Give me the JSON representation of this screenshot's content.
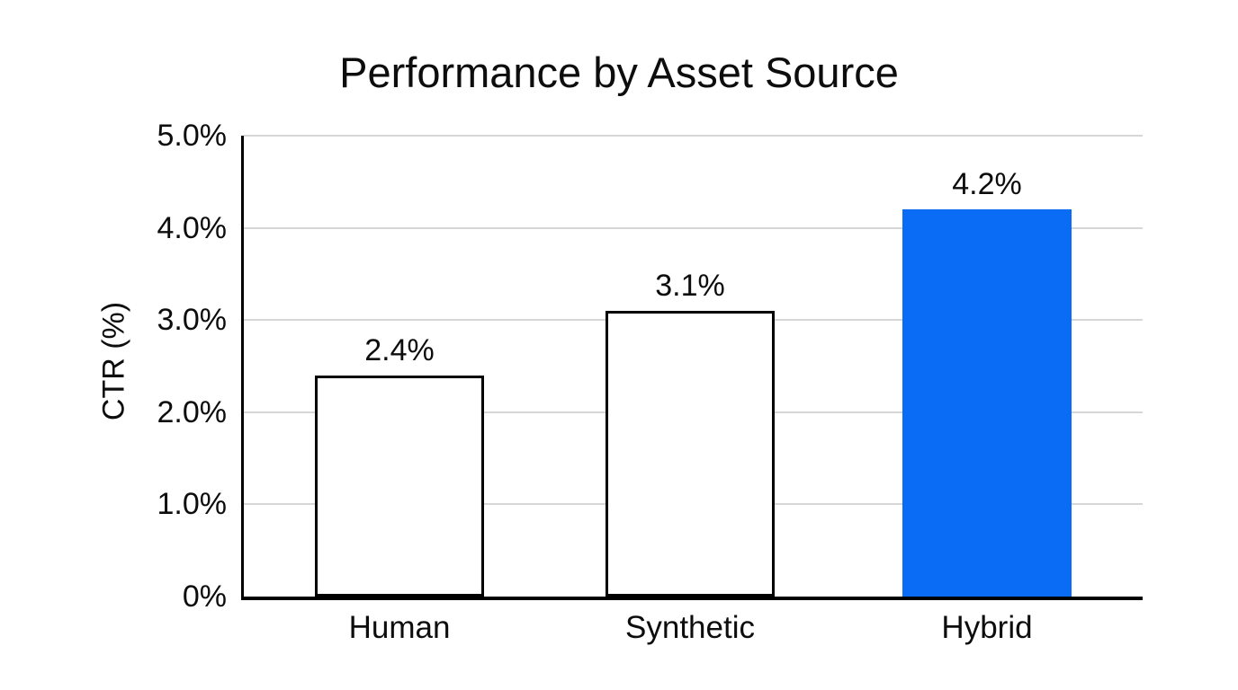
{
  "page": {
    "background": "#ffffff"
  },
  "chart_data": {
    "type": "bar",
    "title": "Performance by Asset Source",
    "categories": [
      "Human",
      "Synthetic",
      "Hybrid"
    ],
    "values": [
      2.4,
      3.1,
      4.2
    ],
    "value_labels": [
      "2.4%",
      "3.1%",
      "4.2%"
    ],
    "xlabel": "",
    "ylabel": "CTR (%)",
    "ylim": [
      0,
      5
    ],
    "yticks": [
      0,
      1,
      2,
      3,
      4,
      5
    ],
    "ytick_labels": [
      "0%",
      "1.0%",
      "2.0%",
      "3.0%",
      "4.0%",
      "5.0%"
    ],
    "grid": true,
    "legend_position": "none",
    "colors": {
      "bar_fills": [
        "#ffffff",
        "#ffffff",
        "#0a6cf5"
      ],
      "bar_borders": [
        "#000000",
        "#000000",
        "none"
      ],
      "accent_blue": "#0a6cf5",
      "gridline": "#d6d6d6",
      "axis": "#000000",
      "text": "#0d0d0d"
    }
  }
}
